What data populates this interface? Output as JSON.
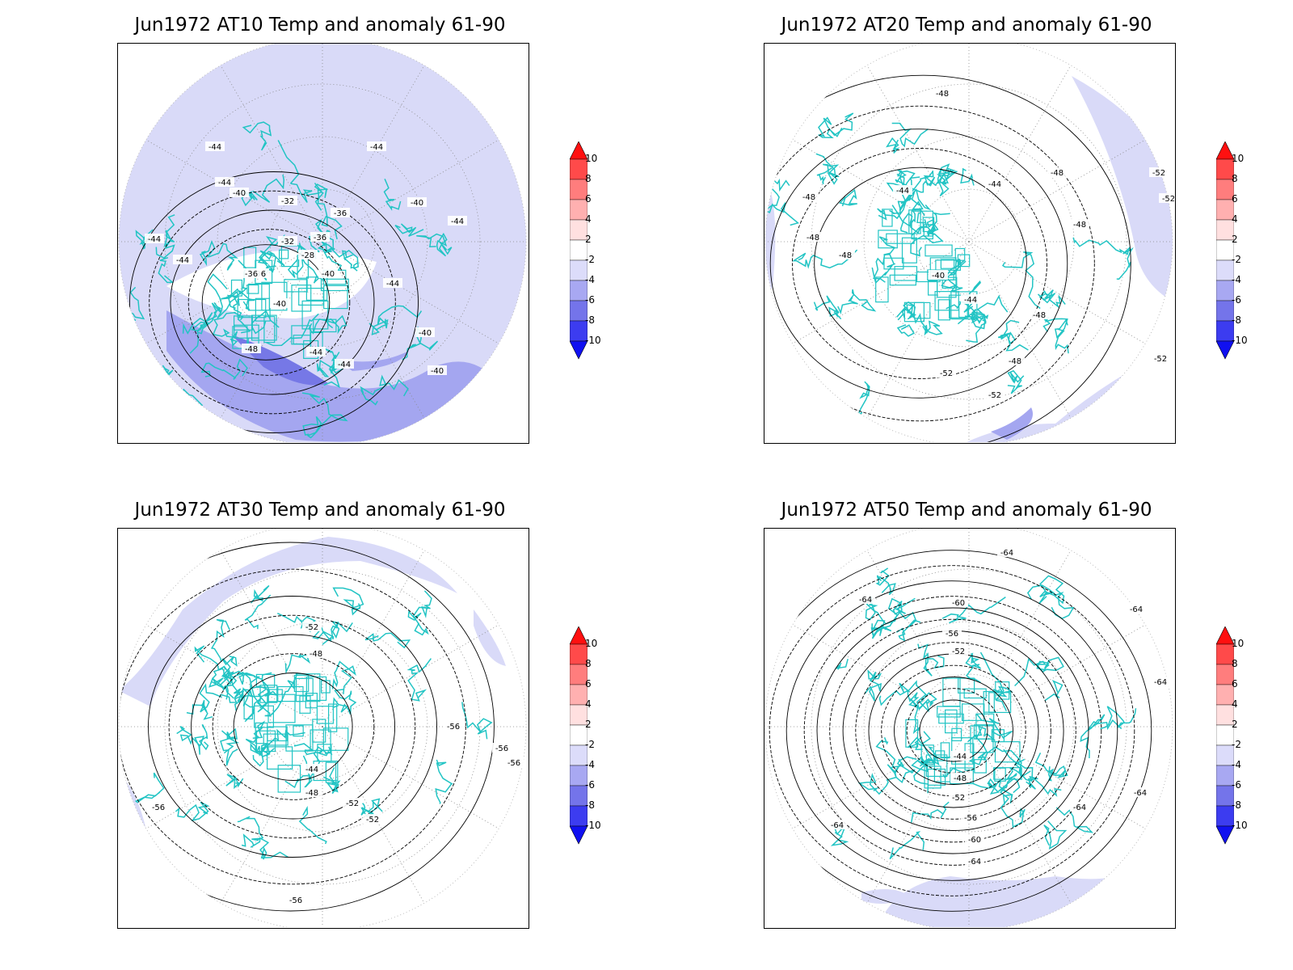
{
  "colors": {
    "anomaly_light": "#d9daf8",
    "anomaly_mid": "#a4a6f0",
    "anomaly_deep": "#7678e6",
    "coastline": "#22c4c4",
    "contour": "#000000"
  },
  "colorbar": {
    "labels": [
      "10",
      "8",
      "6",
      "4",
      "2",
      "-2",
      "-4",
      "-6",
      "-8",
      "-10"
    ],
    "colors": [
      "#ff1010",
      "#ff4a4a",
      "#ff7d7d",
      "#ffb0b0",
      "#ffe0e0",
      "#ffffff",
      "#dcdcfa",
      "#a8a8f2",
      "#7474ea",
      "#3c3cf0",
      "#1010f0"
    ]
  },
  "panels": [
    {
      "title": "Jun1972 AT10 Temp and anomaly 61-90",
      "contour_labels": [
        "-44",
        "-44",
        "-44",
        "-40",
        "-40",
        "-40",
        "-36",
        "-36",
        "-36",
        "-32",
        "-32",
        "-28",
        "-36",
        "-40",
        "-44",
        "-44",
        "-44",
        "-48",
        "-44",
        "-44",
        "-40",
        "-44",
        "-40"
      ]
    },
    {
      "title": "Jun1972 AT20 Temp and anomaly 61-90",
      "contour_labels": [
        "-48",
        "-48",
        "-52",
        "-52",
        "-44",
        "-44",
        "-48",
        "-48",
        "-48",
        "-40",
        "-44",
        "-48",
        "-48",
        "-48",
        "-52",
        "-52",
        "-52"
      ]
    },
    {
      "title": "Jun1972 AT30 Temp and anomaly 61-90",
      "contour_labels": [
        "-52",
        "-48",
        "-44",
        "-48",
        "-52",
        "-52",
        "-56",
        "-56",
        "-56",
        "-56",
        "-56"
      ]
    },
    {
      "title": "Jun1972 AT50 Temp and anomaly 61-90",
      "contour_labels": [
        "-64",
        "-64",
        "-64",
        "-60",
        "-56",
        "-52",
        "-44",
        "-48",
        "-52",
        "-56",
        "-60",
        "-64",
        "-64",
        "-64",
        "-64",
        "-64"
      ]
    }
  ]
}
